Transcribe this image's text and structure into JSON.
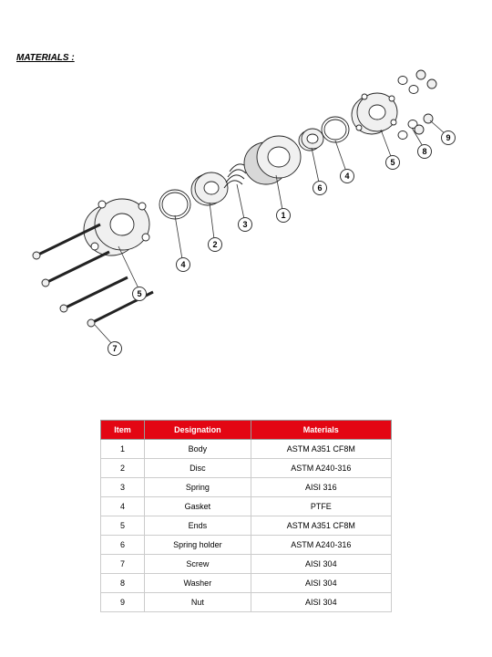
{
  "title": "MATERIALS :",
  "table": {
    "header_bg": "#e30613",
    "header_fg": "#ffffff",
    "border_color": "#cccccc",
    "fontsize": 9,
    "columns": [
      "Item",
      "Designation",
      "Materials"
    ],
    "rows": [
      [
        "1",
        "Body",
        "ASTM A351 CF8M"
      ],
      [
        "2",
        "Disc",
        "ASTM A240-316"
      ],
      [
        "3",
        "Spring",
        "AISI 316"
      ],
      [
        "4",
        "Gasket",
        "PTFE"
      ],
      [
        "5",
        "Ends",
        "ASTM A351 CF8M"
      ],
      [
        "6",
        "Spring holder",
        "ASTM A240-316"
      ],
      [
        "7",
        "Screw",
        "AISI 304"
      ],
      [
        "8",
        "Washer",
        "AISI 304"
      ],
      [
        "9",
        "Nut",
        "AISI 304"
      ]
    ]
  },
  "callouts": {
    "c1": "1",
    "c2": "2",
    "c3": "3",
    "c4a": "4",
    "c4b": "4",
    "c5a": "5",
    "c5b": "5",
    "c6": "6",
    "c7": "7",
    "c8": "8",
    "c9": "9"
  },
  "diagram": {
    "type": "exploded-view",
    "parts": [
      {
        "id": 1,
        "name": "Body"
      },
      {
        "id": 2,
        "name": "Disc"
      },
      {
        "id": 3,
        "name": "Spring"
      },
      {
        "id": 4,
        "name": "Gasket"
      },
      {
        "id": 5,
        "name": "Ends"
      },
      {
        "id": 6,
        "name": "Spring holder"
      },
      {
        "id": 7,
        "name": "Screw"
      },
      {
        "id": 8,
        "name": "Washer"
      },
      {
        "id": 9,
        "name": "Nut"
      }
    ],
    "line_color": "#222222",
    "fill_light": "#f0f0f0",
    "fill_mid": "#d8d8d8"
  }
}
